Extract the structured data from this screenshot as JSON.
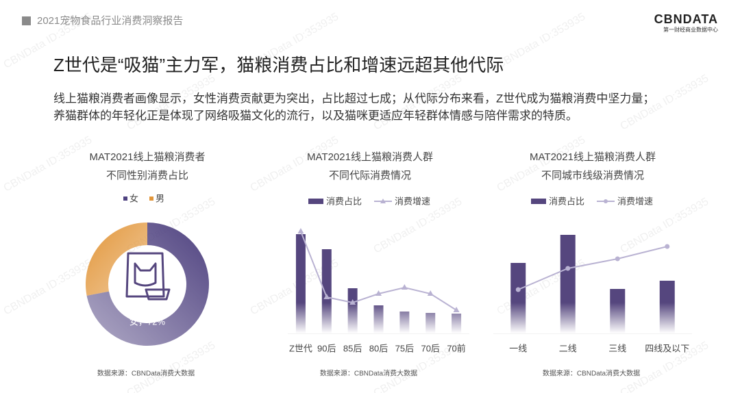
{
  "header": "2021宠物食品行业消费洞察报告",
  "logo": {
    "name": "CBNDATA",
    "tagline": "第一财经商业数据中心"
  },
  "headline": "Z世代是“吸猫”主力军，猫粮消费占比和增速远超其他代际",
  "body": [
    "线上猫粮消费者画像显示，女性消费贡献更为突出，占比超过七成；从代际分布来看，Z世代成为猫粮消费中坚力量；",
    "养猫群体的年轻化正是体现了网络吸猫文化的流行，以及猫咪更适应年轻群体情感与陪伴需求的特质。"
  ],
  "watermark": "CBNData ID:353935",
  "chart_data": [
    {
      "type": "pie",
      "title": "MAT2021线上猫粮消费者",
      "subtitle": "不同性别消费占比",
      "categories": [
        "女",
        "男"
      ],
      "values": [
        72,
        28
      ],
      "colors": [
        "#4f4280",
        "#e2963a"
      ],
      "value_labels": [
        "女，72%",
        null
      ],
      "legend": "top",
      "source": "数据来源：CBNData消费大数据"
    },
    {
      "type": "bar",
      "title": "MAT2021线上猫粮消费人群",
      "subtitle": "不同代际消费情况",
      "categories": [
        "Z世代",
        "90后",
        "85后",
        "80后",
        "75后",
        "70后",
        "70前"
      ],
      "series": [
        {
          "name": "消费占比",
          "type": "bar",
          "color": "#55467e",
          "values": [
            145,
            123,
            66,
            41,
            32,
            30,
            29
          ]
        },
        {
          "name": "消费增速",
          "type": "line",
          "marker": "triangle",
          "color": "#b9b2d2",
          "values": [
            149,
            53,
            45,
            58,
            67,
            58,
            34
          ]
        }
      ],
      "ylim": [
        0,
        150
      ],
      "legend": "top",
      "source": "数据来源：CBNData消费大数据"
    },
    {
      "type": "bar",
      "title": "MAT2021线上猫粮消费人群",
      "subtitle": "不同城市线级消费情况",
      "categories": [
        "一线",
        "二线",
        "三线",
        "四线及以下"
      ],
      "series": [
        {
          "name": "消费占比",
          "type": "bar",
          "color": "#55467e",
          "values": [
            103,
            144,
            65,
            77
          ]
        },
        {
          "name": "消费增速",
          "type": "line",
          "marker": "circle",
          "color": "#b9b2d2",
          "values": [
            64,
            95,
            109,
            127
          ]
        }
      ],
      "ylim": [
        0,
        150
      ],
      "legend": "top",
      "source": "数据来源：CBNData消费大数据"
    }
  ]
}
